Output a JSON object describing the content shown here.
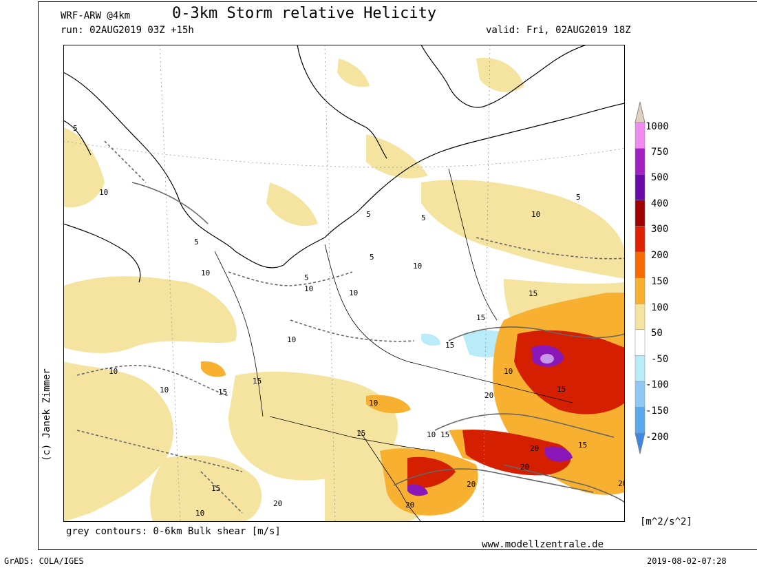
{
  "header": {
    "model": "WRF-ARW @4km",
    "title": "0-3km Storm relative Helicity",
    "run": "run: 02AUG2019 03Z +15h",
    "valid": "valid: Fri, 02AUG2019 18Z"
  },
  "footer": {
    "contours_note": "grey contours: 0-6km Bulk shear [m/s]",
    "website": "www.modellzentrale.de",
    "software": "GrADS: COLA/IGES",
    "timestamp": "2019-08-02-07:28"
  },
  "author": "(c) Janek Zimmer",
  "legend": {
    "unit": "[m^2/s^2]",
    "labels": [
      "1000",
      "750",
      "500",
      "400",
      "300",
      "200",
      "150",
      "100",
      "50",
      "-50",
      "-100",
      "-150",
      "-200"
    ],
    "colors": [
      "#e0d0c0",
      "#f08cf0",
      "#a020c0",
      "#6a0aa8",
      "#a00000",
      "#e02000",
      "#f86a00",
      "#f8b030",
      "#f4e4a0",
      "#ffffff",
      "#b8ecf8",
      "#90c8f4",
      "#5ca8ec",
      "#3c88e0"
    ]
  },
  "contour_labels": [
    "5",
    "5",
    "10",
    "5",
    "10",
    "10",
    "5",
    "5",
    "5",
    "10",
    "10",
    "5",
    "10",
    "10",
    "15",
    "15",
    "10",
    "15",
    "10",
    "15",
    "10",
    "15",
    "15",
    "10",
    "15",
    "20",
    "15",
    "20",
    "15",
    "20",
    "20",
    "20",
    "20",
    "20",
    "10",
    "15",
    "10"
  ]
}
